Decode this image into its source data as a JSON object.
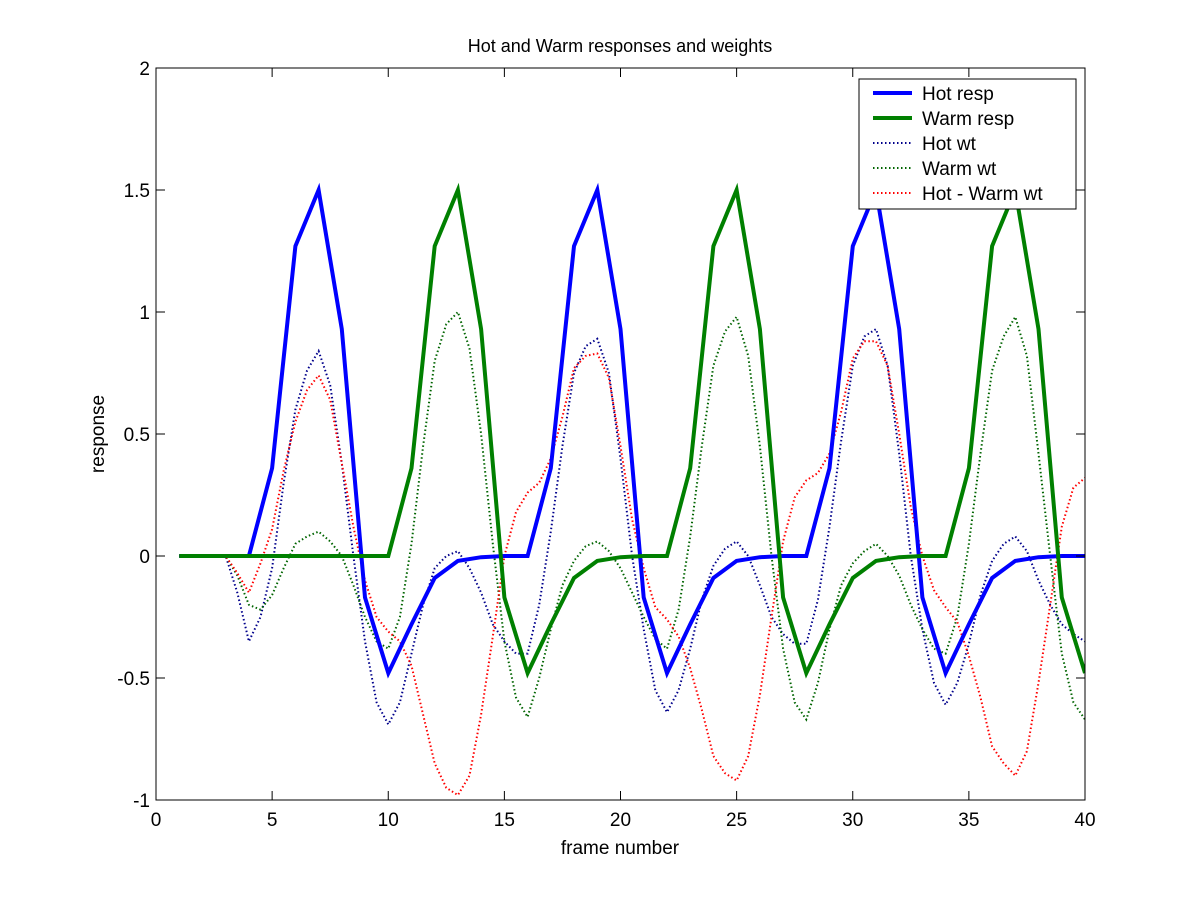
{
  "chart_data": {
    "type": "line",
    "title": "Hot and Warm responses and weights",
    "xlabel": "frame number",
    "ylabel": "response",
    "xlim": [
      0,
      40
    ],
    "ylim": [
      -1,
      2
    ],
    "xticks": [
      0,
      5,
      10,
      15,
      20,
      25,
      30,
      35,
      40
    ],
    "xtick_labels": [
      "0",
      "5",
      "10",
      "15",
      "20",
      "25",
      "30",
      "35",
      "40"
    ],
    "yticks": [
      -1,
      -0.5,
      0,
      0.5,
      1,
      1.5,
      2
    ],
    "ytick_labels": [
      "-1",
      "-0.5",
      "0",
      "0.5",
      "1",
      "1.5",
      "2"
    ],
    "grid": false,
    "legend_position": "top-right",
    "series": [
      {
        "name": "Hot resp",
        "color": "#0000ff",
        "style": "solid",
        "x": [
          1,
          2,
          3,
          4,
          5,
          6,
          7,
          8,
          9,
          10,
          11,
          12,
          13,
          14,
          15,
          16,
          17,
          18,
          19,
          20,
          21,
          22,
          23,
          24,
          25,
          26,
          27,
          28,
          29,
          30,
          31,
          32,
          33,
          34,
          35,
          36,
          37,
          38,
          39,
          40
        ],
        "y": [
          0,
          0,
          0,
          0,
          0.36,
          1.27,
          1.5,
          0.93,
          -0.17,
          -0.48,
          -0.28,
          -0.09,
          -0.02,
          -0.005,
          0,
          0,
          0.36,
          1.27,
          1.5,
          0.93,
          -0.17,
          -0.48,
          -0.28,
          -0.09,
          -0.02,
          -0.005,
          0,
          0,
          0.36,
          1.27,
          1.5,
          0.93,
          -0.17,
          -0.48,
          -0.28,
          -0.09,
          -0.02,
          -0.005,
          0,
          0
        ]
      },
      {
        "name": "Warm resp",
        "color": "#008000",
        "style": "solid",
        "x": [
          1,
          2,
          3,
          4,
          5,
          6,
          7,
          8,
          9,
          10,
          11,
          12,
          13,
          14,
          15,
          16,
          17,
          18,
          19,
          20,
          21,
          22,
          23,
          24,
          25,
          26,
          27,
          28,
          29,
          30,
          31,
          32,
          33,
          34,
          35,
          36,
          37,
          38,
          39,
          40
        ],
        "y": [
          0,
          0,
          0,
          0,
          0,
          0,
          0,
          0,
          0,
          0,
          0.36,
          1.27,
          1.5,
          0.93,
          -0.17,
          -0.48,
          -0.28,
          -0.09,
          -0.02,
          -0.005,
          0,
          0,
          0.36,
          1.27,
          1.5,
          0.93,
          -0.17,
          -0.48,
          -0.28,
          -0.09,
          -0.02,
          -0.005,
          0,
          0,
          0.36,
          1.27,
          1.5,
          0.93,
          -0.17,
          -0.48
        ]
      },
      {
        "name": "Hot wt",
        "color": "#00008b",
        "style": "dotted",
        "x": [
          1,
          2,
          3,
          3.5,
          4,
          4.5,
          5,
          5.5,
          6,
          6.5,
          7,
          7.5,
          8,
          8.5,
          9,
          9.5,
          10,
          10.5,
          11,
          11.5,
          12,
          12.5,
          13,
          13.5,
          14,
          14.5,
          15,
          15.5,
          16,
          16.5,
          17,
          17.5,
          18,
          18.5,
          19,
          19.5,
          20,
          20.5,
          21,
          21.5,
          22,
          22.5,
          23,
          23.5,
          24,
          24.5,
          25,
          25.5,
          26,
          26.5,
          27,
          27.5,
          28,
          28.5,
          29,
          29.5,
          30,
          30.5,
          31,
          31.5,
          32,
          32.5,
          33,
          33.5,
          34,
          34.5,
          35,
          35.5,
          36,
          36.5,
          37,
          37.5,
          38,
          38.5,
          39,
          39.5,
          40
        ],
        "y": [
          0,
          0,
          0,
          -0.15,
          -0.35,
          -0.25,
          -0.05,
          0.3,
          0.6,
          0.76,
          0.84,
          0.7,
          0.38,
          0.0,
          -0.35,
          -0.6,
          -0.69,
          -0.6,
          -0.4,
          -0.2,
          -0.05,
          0.0,
          0.02,
          -0.05,
          -0.15,
          -0.28,
          -0.35,
          -0.4,
          -0.4,
          -0.2,
          0.1,
          0.45,
          0.75,
          0.86,
          0.89,
          0.75,
          0.4,
          0.0,
          -0.3,
          -0.55,
          -0.64,
          -0.55,
          -0.38,
          -0.18,
          -0.04,
          0.03,
          0.06,
          0.0,
          -0.12,
          -0.25,
          -0.32,
          -0.36,
          -0.36,
          -0.18,
          0.12,
          0.47,
          0.78,
          0.9,
          0.93,
          0.78,
          0.42,
          0.0,
          -0.3,
          -0.52,
          -0.61,
          -0.52,
          -0.36,
          -0.16,
          -0.02,
          0.05,
          0.08,
          0.02,
          -0.1,
          -0.2,
          -0.28,
          -0.32,
          -0.35
        ]
      },
      {
        "name": "Warm wt",
        "color": "#006400",
        "style": "dotted",
        "x": [
          1,
          2,
          3,
          3.5,
          4,
          4.5,
          5,
          5.5,
          6,
          6.5,
          7,
          7.5,
          8,
          8.5,
          9,
          9.5,
          10,
          10.5,
          11,
          11.5,
          12,
          12.5,
          13,
          13.5,
          14,
          14.5,
          15,
          15.5,
          16,
          16.5,
          17,
          17.5,
          18,
          18.5,
          19,
          19.5,
          20,
          20.5,
          21,
          21.5,
          22,
          22.5,
          23,
          23.5,
          24,
          24.5,
          25,
          25.5,
          26,
          26.5,
          27,
          27.5,
          28,
          28.5,
          29,
          29.5,
          30,
          30.5,
          31,
          31.5,
          32,
          32.5,
          33,
          33.5,
          34,
          34.5,
          35,
          35.5,
          36,
          36.5,
          37,
          37.5,
          38,
          38.5,
          39,
          39.5,
          40
        ],
        "y": [
          0,
          0,
          0,
          -0.08,
          -0.2,
          -0.22,
          -0.16,
          -0.05,
          0.05,
          0.08,
          0.1,
          0.06,
          0.0,
          -0.12,
          -0.25,
          -0.35,
          -0.38,
          -0.25,
          0.05,
          0.45,
          0.8,
          0.95,
          1.0,
          0.85,
          0.5,
          0.05,
          -0.35,
          -0.58,
          -0.66,
          -0.5,
          -0.3,
          -0.12,
          -0.02,
          0.04,
          0.06,
          0.02,
          -0.05,
          -0.15,
          -0.25,
          -0.34,
          -0.38,
          -0.22,
          0.08,
          0.45,
          0.78,
          0.92,
          0.98,
          0.82,
          0.45,
          0.0,
          -0.38,
          -0.6,
          -0.67,
          -0.52,
          -0.3,
          -0.12,
          -0.03,
          0.02,
          0.05,
          0.0,
          -0.08,
          -0.2,
          -0.3,
          -0.38,
          -0.4,
          -0.25,
          0.05,
          0.42,
          0.76,
          0.9,
          0.98,
          0.82,
          0.42,
          0.0,
          -0.4,
          -0.6,
          -0.67
        ]
      },
      {
        "name": "Hot - Warm wt",
        "color": "#ff0000",
        "style": "dotted",
        "x": [
          1,
          2,
          3,
          3.5,
          4,
          4.5,
          5,
          5.5,
          6,
          6.5,
          7,
          7.5,
          8,
          8.5,
          9,
          9.5,
          10,
          10.5,
          11,
          11.5,
          12,
          12.5,
          13,
          13.5,
          14,
          14.5,
          15,
          15.5,
          16,
          16.5,
          17,
          17.5,
          18,
          18.5,
          19,
          19.5,
          20,
          20.5,
          21,
          21.5,
          22,
          22.5,
          23,
          23.5,
          24,
          24.5,
          25,
          25.5,
          26,
          26.5,
          27,
          27.5,
          28,
          28.5,
          29,
          29.5,
          30,
          30.5,
          31,
          31.5,
          32,
          32.5,
          33,
          33.5,
          34,
          34.5,
          35,
          35.5,
          36,
          36.5,
          37,
          37.5,
          38,
          38.5,
          39,
          39.5,
          40
        ],
        "y": [
          0,
          0,
          0,
          -0.07,
          -0.15,
          -0.03,
          0.11,
          0.35,
          0.55,
          0.68,
          0.74,
          0.64,
          0.38,
          0.12,
          -0.1,
          -0.25,
          -0.31,
          -0.35,
          -0.45,
          -0.65,
          -0.85,
          -0.95,
          -0.98,
          -0.9,
          -0.65,
          -0.33,
          0.0,
          0.18,
          0.26,
          0.3,
          0.4,
          0.57,
          0.77,
          0.82,
          0.83,
          0.73,
          0.45,
          0.15,
          -0.05,
          -0.21,
          -0.26,
          -0.33,
          -0.46,
          -0.63,
          -0.82,
          -0.89,
          -0.92,
          -0.82,
          -0.57,
          -0.25,
          0.06,
          0.24,
          0.31,
          0.34,
          0.42,
          0.59,
          0.81,
          0.88,
          0.88,
          0.78,
          0.5,
          0.2,
          0.0,
          -0.14,
          -0.21,
          -0.27,
          -0.41,
          -0.58,
          -0.78,
          -0.85,
          -0.9,
          -0.8,
          -0.52,
          -0.2,
          0.12,
          0.28,
          0.32
        ]
      }
    ]
  }
}
